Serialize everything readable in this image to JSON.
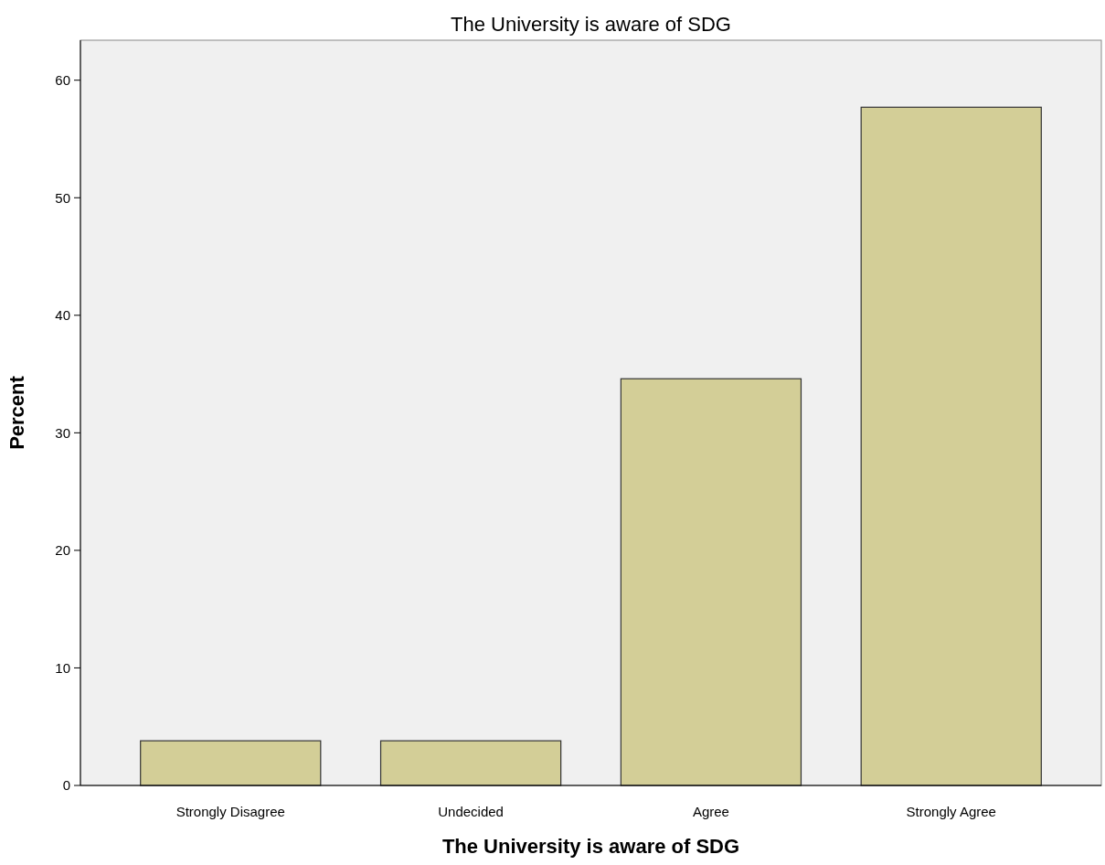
{
  "chart_data": {
    "type": "bar",
    "title": "The University is aware of SDG",
    "xlabel": "The University is aware of SDG",
    "ylabel": "Percent",
    "categories": [
      "Strongly Disagree",
      "Undecided",
      "Agree",
      "Strongly Agree"
    ],
    "values": [
      3.8,
      3.8,
      34.6,
      57.7
    ],
    "color": "#d3ce97",
    "ylim": [
      0,
      63.4
    ],
    "yticks": [
      0,
      10,
      20,
      30,
      40,
      50,
      60
    ],
    "grid": false
  }
}
